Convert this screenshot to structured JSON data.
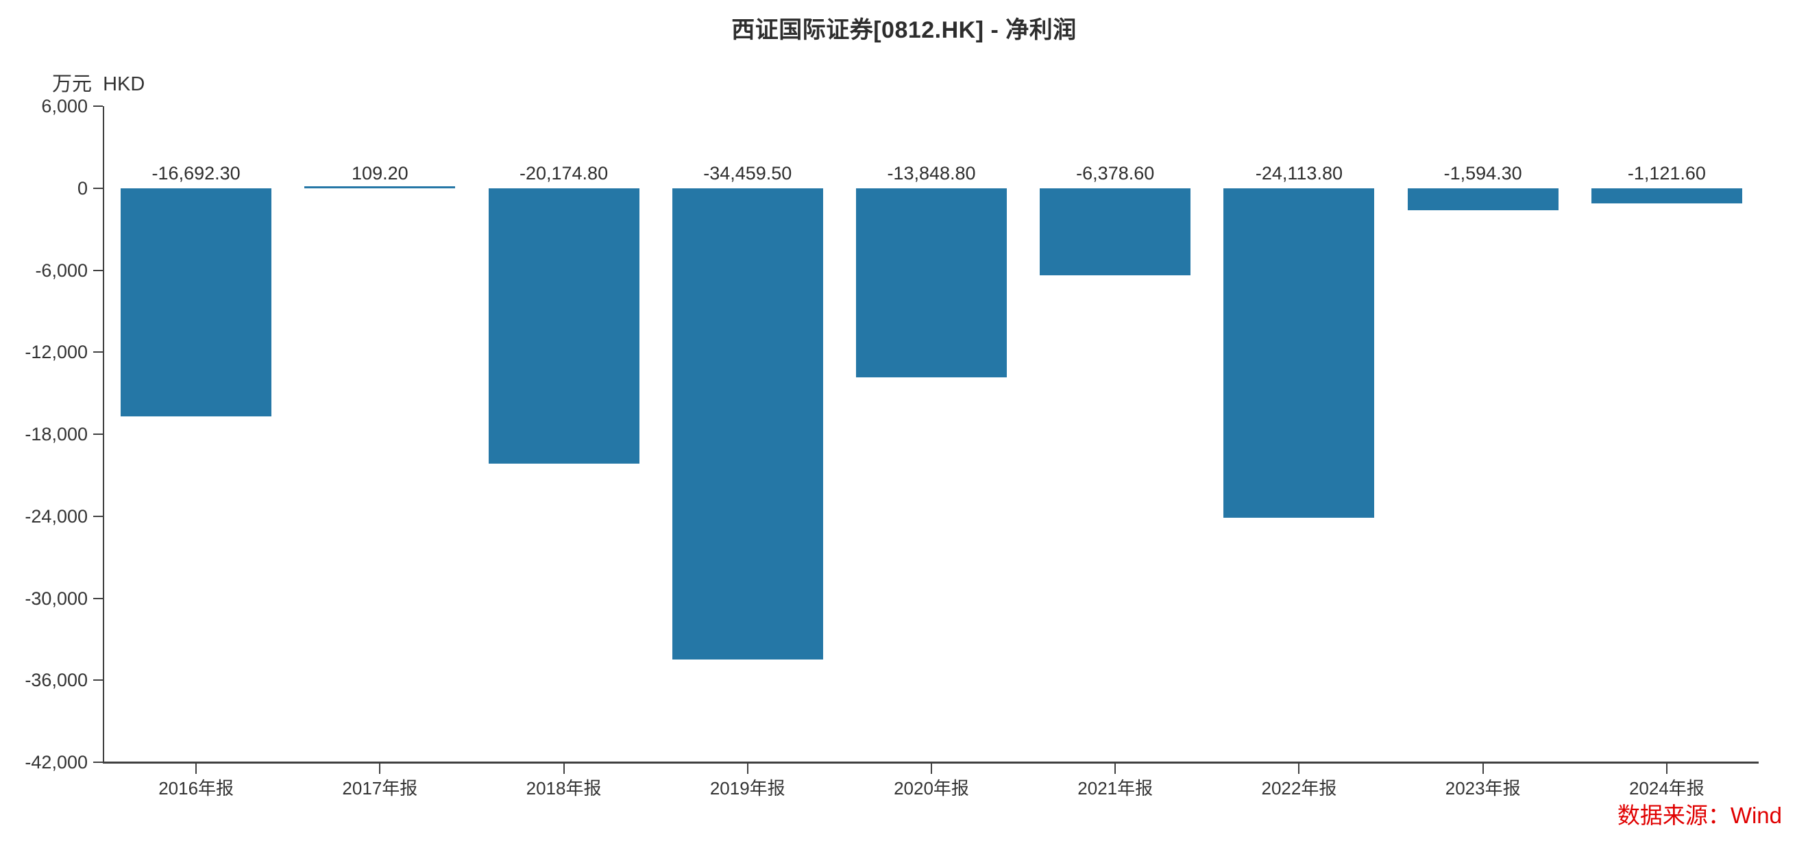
{
  "page": {
    "title": "西证国际证券[0812.HK] - 净利润",
    "unit_label": "万元  HKD",
    "source_label": "数据来源：Wind"
  },
  "colors": {
    "bar": "#2577a6",
    "axis": "#404040",
    "text": "#333333",
    "source_red": "#e00000"
  },
  "chart_data": {
    "type": "bar",
    "title": "西证国际证券[0812.HK] - 净利润",
    "ylabel": "万元 HKD",
    "xlabel": "",
    "categories": [
      "2016年报",
      "2017年报",
      "2018年报",
      "2019年报",
      "2020年报",
      "2021年报",
      "2022年报",
      "2023年报",
      "2024年报"
    ],
    "values": [
      -16692.3,
      109.2,
      -20174.8,
      -34459.5,
      -13848.8,
      -6378.6,
      -24113.8,
      -1594.3,
      -1121.6
    ],
    "value_labels": [
      "-16,692.30",
      "109.20",
      "-20,174.80",
      "-34,459.50",
      "-13,848.80",
      "-6,378.60",
      "-24,113.80",
      "-1,594.30",
      "-1,121.60"
    ],
    "ylim": [
      -42000,
      6000
    ],
    "ytick_step": 6000,
    "ytick_labels": [
      "6,000",
      "0",
      "-6,000",
      "-12,000",
      "-18,000",
      "-24,000",
      "-30,000",
      "-36,000",
      "-42,000"
    ],
    "grid": false,
    "legend_position": "none"
  }
}
